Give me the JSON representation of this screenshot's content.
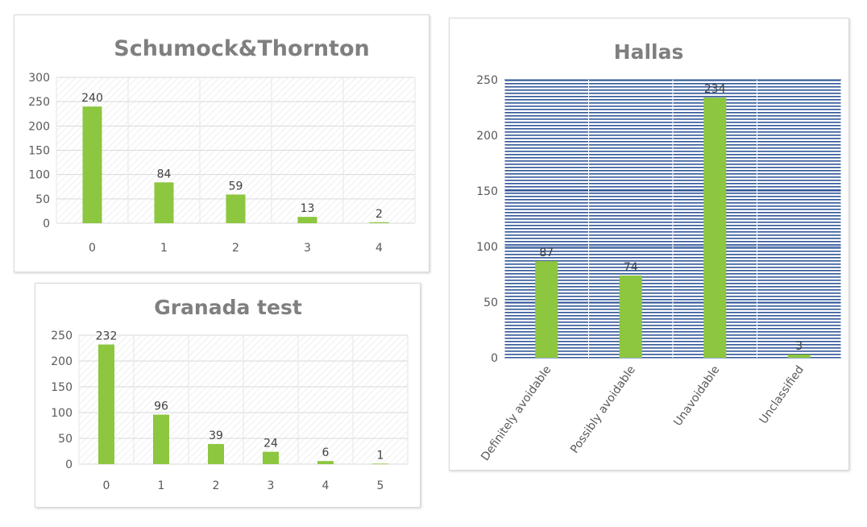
{
  "chart_data": [
    {
      "id": "schumock",
      "type": "bar",
      "title": "Schumock&Thornton",
      "categories": [
        "0",
        "1",
        "2",
        "3",
        "4"
      ],
      "values": [
        240,
        84,
        59,
        13,
        2
      ],
      "ylim": [
        0,
        300
      ],
      "yticks": [
        "0",
        "50",
        "100",
        "150",
        "200",
        "250",
        "300"
      ],
      "grid": true,
      "color": "#8dc63f"
    },
    {
      "id": "granada",
      "type": "bar",
      "title": "Granada test",
      "categories": [
        "0",
        "1",
        "2",
        "3",
        "4",
        "5"
      ],
      "values": [
        232,
        96,
        39,
        24,
        6,
        1
      ],
      "ylim": [
        0,
        250
      ],
      "yticks": [
        "0",
        "50",
        "100",
        "150",
        "200",
        "250"
      ],
      "grid": true,
      "color": "#8dc63f"
    },
    {
      "id": "hallas",
      "type": "bar",
      "title": "Hallas",
      "categories": [
        "Definitely avoidable",
        "Possibly avoidable",
        "Unavoidable",
        "Unclassified"
      ],
      "values": [
        87,
        74,
        234,
        3
      ],
      "ylim": [
        0,
        250
      ],
      "yticks": [
        "0",
        "50",
        "100",
        "150",
        "200",
        "250"
      ],
      "grid": true,
      "color": "#8dc63f",
      "plot_background": "#2f5597"
    }
  ]
}
